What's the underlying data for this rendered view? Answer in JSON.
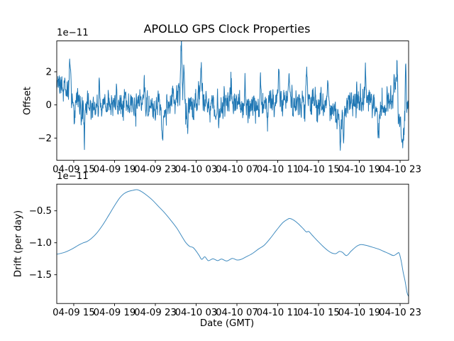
{
  "figure": {
    "title": "APOLLO GPS Clock Properties",
    "xlabel": "Date (GMT)",
    "background": "#ffffff",
    "line_color": "#1f77b4"
  },
  "chart_data": [
    {
      "type": "line",
      "title": "APOLLO GPS Clock Properties",
      "ylabel": "Offset",
      "y_offset_text": "1e−11",
      "y_unit_scale": 1e-11,
      "grid": false,
      "legend": null,
      "xlim": [
        13.333,
        47.833
      ],
      "ylim": [
        -3.34,
        3.86
      ],
      "x_tick_values": [
        15,
        19,
        23,
        27,
        31,
        35,
        39,
        43,
        47
      ],
      "x_tick_labels": [
        "04-09 15",
        "04-09 19",
        "04-09 23",
        "04-10 03",
        "04-10 07",
        "04-10 11",
        "04-10 15",
        "04-10 19",
        "04-10 23"
      ],
      "y_tick_values": [
        2,
        0,
        -2
      ],
      "y_tick_labels": [
        "2",
        "0",
        "−2"
      ],
      "series": [
        {
          "name": "offset",
          "color": "#1f77b4",
          "generator": {
            "seed": 20,
            "n": 1500,
            "ar": 0.45,
            "sigma": 0.38,
            "mean_keypoints": [
              [
                13.33,
                1.15
              ],
              [
                13.7,
                1.0
              ],
              [
                14.1,
                0.75
              ],
              [
                14.45,
                0.9
              ],
              [
                15.0,
                0.35
              ],
              [
                15.6,
                0.0
              ],
              [
                16.1,
                -0.35
              ],
              [
                16.6,
                -0.1
              ],
              [
                17.2,
                0.1
              ],
              [
                18.0,
                -0.15
              ],
              [
                19.0,
                0.0
              ],
              [
                20.0,
                0.1
              ],
              [
                20.8,
                -0.1
              ],
              [
                21.6,
                0.15
              ],
              [
                22.4,
                -0.1
              ],
              [
                23.2,
                0.0
              ],
              [
                23.8,
                -0.35
              ],
              [
                24.4,
                0.1
              ],
              [
                25.2,
                0.35
              ],
              [
                25.6,
                0.5
              ],
              [
                26.0,
                -0.3
              ],
              [
                26.6,
                0.0
              ],
              [
                27.4,
                0.3
              ],
              [
                28.2,
                -0.1
              ],
              [
                29.0,
                -0.25
              ],
              [
                29.8,
                0.15
              ],
              [
                30.6,
                0.2
              ],
              [
                31.4,
                -0.1
              ],
              [
                32.2,
                0.05
              ],
              [
                33.0,
                -0.3
              ],
              [
                33.6,
                0.2
              ],
              [
                34.4,
                0.0
              ],
              [
                35.1,
                0.35
              ],
              [
                35.8,
                0.1
              ],
              [
                36.6,
                0.2
              ],
              [
                37.4,
                0.0
              ],
              [
                38.2,
                0.25
              ],
              [
                39.0,
                -0.1
              ],
              [
                39.8,
                0.2
              ],
              [
                40.6,
                -0.3
              ],
              [
                41.2,
                -0.9
              ],
              [
                41.6,
                -0.4
              ],
              [
                42.2,
                0.1
              ],
              [
                42.8,
                0.3
              ],
              [
                43.6,
                0.2
              ],
              [
                44.4,
                0.0
              ],
              [
                44.9,
                -0.5
              ],
              [
                45.4,
                0.0
              ],
              [
                46.0,
                0.3
              ],
              [
                46.6,
                0.4
              ],
              [
                47.0,
                -1.3
              ],
              [
                47.3,
                -1.55
              ],
              [
                47.55,
                0.3
              ],
              [
                47.83,
                -0.3
              ]
            ],
            "spikes": [
              [
                14.62,
                2.2,
                0.1
              ],
              [
                15.1,
                -1.2,
                0.08
              ],
              [
                16.05,
                -1.1,
                0.07
              ],
              [
                17.5,
                1.45,
                0.08
              ],
              [
                19.2,
                1.1,
                0.06
              ],
              [
                21.9,
                1.5,
                0.07
              ],
              [
                23.7,
                -1.35,
                0.08
              ],
              [
                25.55,
                3.0,
                0.09
              ],
              [
                25.8,
                1.9,
                0.07
              ],
              [
                26.15,
                -1.5,
                0.07
              ],
              [
                27.5,
                1.9,
                0.08
              ],
              [
                28.9,
                -1.1,
                0.07
              ],
              [
                30.4,
                1.6,
                0.08
              ],
              [
                31.8,
                1.2,
                0.06
              ],
              [
                33.3,
                1.7,
                0.08
              ],
              [
                34.0,
                -1.2,
                0.07
              ],
              [
                35.1,
                2.0,
                0.08
              ],
              [
                36.1,
                1.6,
                0.07
              ],
              [
                37.85,
                2.0,
                0.08
              ],
              [
                39.9,
                1.6,
                0.07
              ],
              [
                41.15,
                -1.2,
                0.08
              ],
              [
                41.45,
                -1.5,
                0.08
              ],
              [
                43.6,
                1.8,
                0.08
              ],
              [
                44.9,
                -1.4,
                0.08
              ],
              [
                46.4,
                1.3,
                0.07
              ],
              [
                46.72,
                2.5,
                0.07
              ],
              [
                47.18,
                -1.2,
                0.09
              ],
              [
                47.42,
                -1.2,
                0.06
              ],
              [
                47.55,
                2.7,
                0.05
              ]
            ]
          }
        }
      ]
    },
    {
      "type": "line",
      "ylabel": "Drift (per day)",
      "xlabel": "Date (GMT)",
      "y_offset_text": "1e−11",
      "y_unit_scale": 1e-11,
      "grid": false,
      "legend": null,
      "xlim": [
        13.333,
        47.833
      ],
      "ylim": [
        -1.95,
        -0.083
      ],
      "x_tick_values": [
        15,
        19,
        23,
        27,
        31,
        35,
        39,
        43,
        47
      ],
      "x_tick_labels": [
        "04-09 15",
        "04-09 19",
        "04-09 23",
        "04-10 03",
        "04-10 07",
        "04-10 11",
        "04-10 15",
        "04-10 19",
        "04-10 23"
      ],
      "y_tick_values": [
        -0.5,
        -1.0,
        -1.5
      ],
      "y_tick_labels": [
        "−0.5",
        "−1.0",
        "−1.5"
      ],
      "series": [
        {
          "name": "drift",
          "color": "#1f77b4",
          "points": [
            [
              13.35,
              -1.18
            ],
            [
              14.1,
              -1.15
            ],
            [
              14.8,
              -1.1
            ],
            [
              15.5,
              -1.035
            ],
            [
              15.95,
              -1.0
            ],
            [
              16.3,
              -0.98
            ],
            [
              16.75,
              -0.93
            ],
            [
              17.25,
              -0.85
            ],
            [
              17.85,
              -0.72
            ],
            [
              18.45,
              -0.565
            ],
            [
              19.0,
              -0.42
            ],
            [
              19.5,
              -0.3
            ],
            [
              19.9,
              -0.235
            ],
            [
              20.3,
              -0.2
            ],
            [
              20.8,
              -0.18
            ],
            [
              21.2,
              -0.17
            ],
            [
              21.6,
              -0.195
            ],
            [
              22.1,
              -0.25
            ],
            [
              22.7,
              -0.33
            ],
            [
              23.3,
              -0.43
            ],
            [
              23.9,
              -0.53
            ],
            [
              24.5,
              -0.645
            ],
            [
              25.1,
              -0.77
            ],
            [
              25.6,
              -0.9
            ],
            [
              26.0,
              -1.0
            ],
            [
              26.35,
              -1.055
            ],
            [
              26.7,
              -1.075
            ],
            [
              27.0,
              -1.13
            ],
            [
              27.3,
              -1.2
            ],
            [
              27.55,
              -1.26
            ],
            [
              27.85,
              -1.22
            ],
            [
              28.2,
              -1.28
            ],
            [
              28.65,
              -1.25
            ],
            [
              29.1,
              -1.28
            ],
            [
              29.5,
              -1.255
            ],
            [
              30.0,
              -1.285
            ],
            [
              30.55,
              -1.245
            ],
            [
              31.0,
              -1.27
            ],
            [
              31.4,
              -1.26
            ],
            [
              31.9,
              -1.22
            ],
            [
              32.5,
              -1.17
            ],
            [
              33.1,
              -1.1
            ],
            [
              33.7,
              -1.035
            ],
            [
              34.3,
              -0.925
            ],
            [
              34.9,
              -0.8
            ],
            [
              35.5,
              -0.685
            ],
            [
              36.0,
              -0.63
            ],
            [
              36.2,
              -0.62
            ],
            [
              36.6,
              -0.65
            ],
            [
              37.0,
              -0.7
            ],
            [
              37.5,
              -0.78
            ],
            [
              37.8,
              -0.83
            ],
            [
              38.05,
              -0.825
            ],
            [
              38.4,
              -0.885
            ],
            [
              38.9,
              -0.97
            ],
            [
              39.4,
              -1.05
            ],
            [
              39.9,
              -1.12
            ],
            [
              40.3,
              -1.16
            ],
            [
              40.7,
              -1.17
            ],
            [
              41.05,
              -1.135
            ],
            [
              41.35,
              -1.15
            ],
            [
              41.75,
              -1.2
            ],
            [
              42.2,
              -1.13
            ],
            [
              42.7,
              -1.06
            ],
            [
              43.1,
              -1.03
            ],
            [
              43.5,
              -1.035
            ],
            [
              43.9,
              -1.05
            ],
            [
              44.4,
              -1.075
            ],
            [
              44.9,
              -1.1
            ],
            [
              45.4,
              -1.135
            ],
            [
              45.9,
              -1.17
            ],
            [
              46.35,
              -1.2
            ],
            [
              46.7,
              -1.17
            ],
            [
              46.9,
              -1.16
            ],
            [
              47.1,
              -1.28
            ],
            [
              47.3,
              -1.46
            ],
            [
              47.5,
              -1.61
            ],
            [
              47.68,
              -1.78
            ],
            [
              47.83,
              -1.84
            ]
          ]
        }
      ]
    }
  ]
}
